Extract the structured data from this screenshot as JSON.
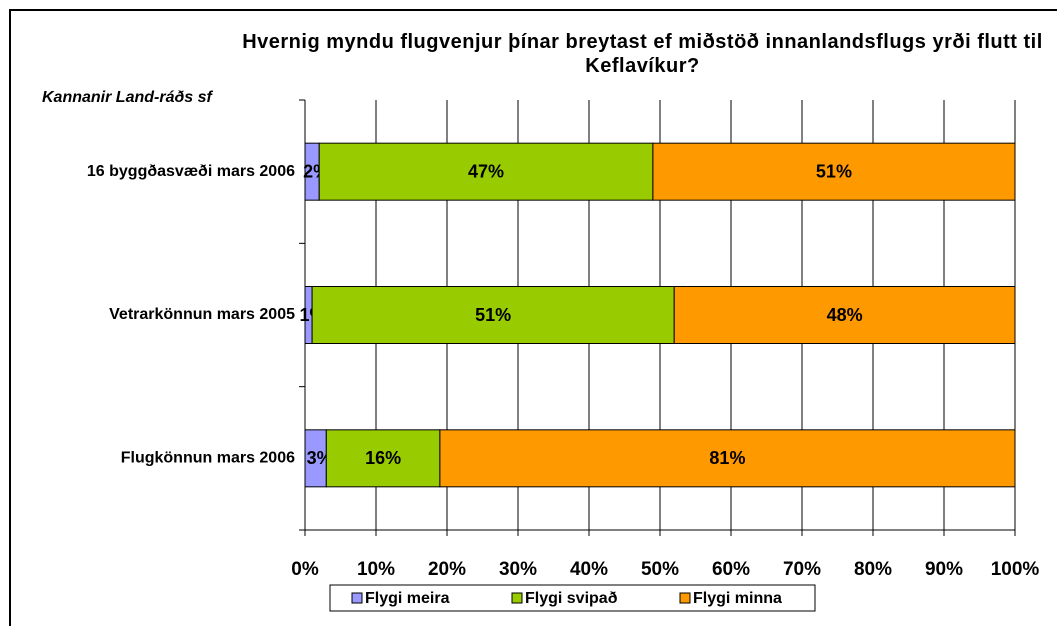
{
  "chart_data": {
    "type": "stacked_barh",
    "title": "Hvernig myndu flugvenjur þínar breytast ef miðstöð innanlandsflugs yrði flutt til Keflavíkur?",
    "subtitle": "Kannanir Land-ráðs sf",
    "categories": [
      "16 byggðasvæði mars 2006",
      "Vetrarkönnun mars 2005",
      "Flugkönnun mars 2006"
    ],
    "series": [
      {
        "name": "Flygi meira",
        "color": "#9999ff",
        "values": [
          2,
          1,
          3
        ],
        "value_labels": [
          "2%",
          "1%",
          "3%"
        ]
      },
      {
        "name": "Flygi svipað",
        "color": "#99cc00",
        "values": [
          47,
          51,
          16
        ],
        "value_labels": [
          "47%",
          "51%",
          "16%"
        ]
      },
      {
        "name": "Flygi minna",
        "color": "#ff9900",
        "values": [
          51,
          48,
          81
        ],
        "value_labels": [
          "51%",
          "48%",
          "81%"
        ]
      }
    ],
    "xlim": [
      0,
      100
    ],
    "xticks": [
      {
        "value": 0,
        "label": "0%"
      },
      {
        "value": 10,
        "label": "10%"
      },
      {
        "value": 20,
        "label": "20%"
      },
      {
        "value": 30,
        "label": "30%"
      },
      {
        "value": 40,
        "label": "40%"
      },
      {
        "value": 50,
        "label": "50%"
      },
      {
        "value": 60,
        "label": "60%"
      },
      {
        "value": 70,
        "label": "70%"
      },
      {
        "value": 80,
        "label": "80%"
      },
      {
        "value": 90,
        "label": "90%"
      },
      {
        "value": 100,
        "label": "100%"
      }
    ],
    "grid": true,
    "legend": "bottom"
  }
}
